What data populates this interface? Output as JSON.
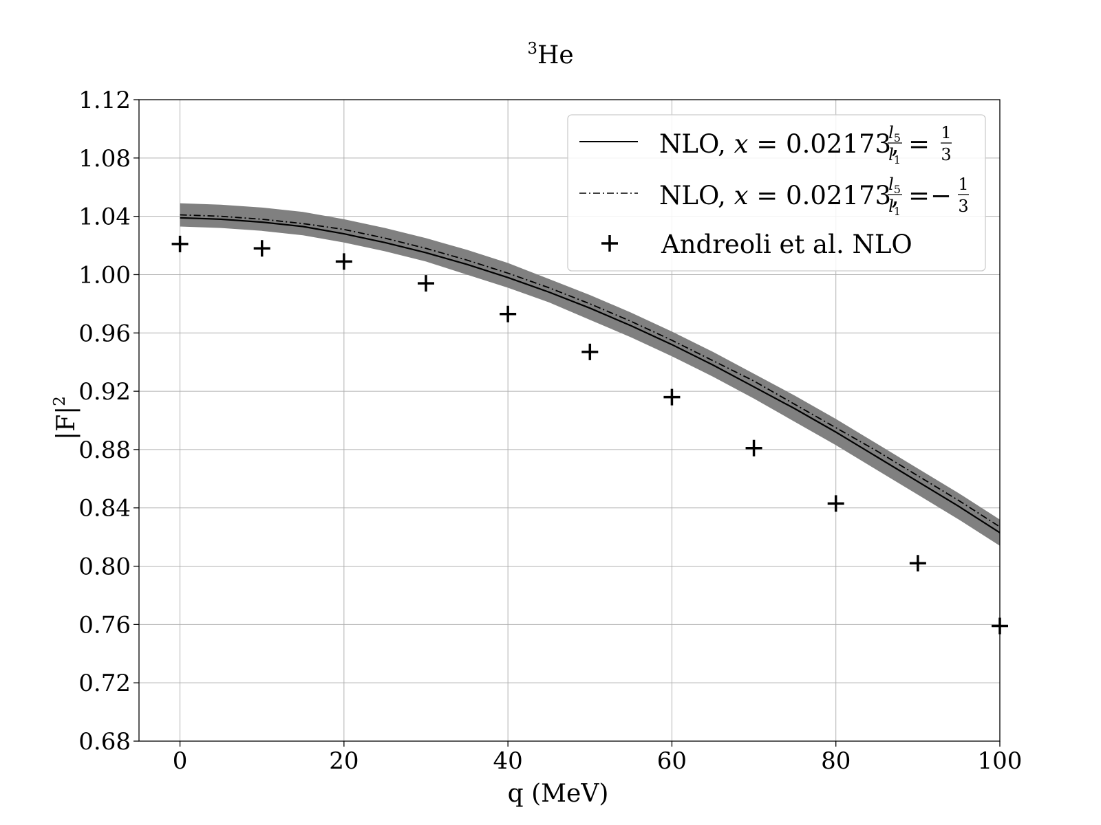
{
  "chart_data": {
    "type": "line",
    "title": {
      "superscript": "3",
      "text": "He"
    },
    "xlabel": "q (MeV)",
    "ylabel": {
      "text": "|F|",
      "superscript": "2"
    },
    "xlim": [
      -5,
      100
    ],
    "ylim": [
      0.68,
      1.12
    ],
    "xticks": [
      0,
      20,
      40,
      60,
      80,
      100
    ],
    "xtick_labels": [
      "0",
      "20",
      "40",
      "60",
      "80",
      "100"
    ],
    "yticks": [
      0.68,
      0.72,
      0.76,
      0.8,
      0.84,
      0.88,
      0.92,
      0.96,
      1.0,
      1.04,
      1.08,
      1.12
    ],
    "ytick_labels": [
      "0.68",
      "0.72",
      "0.76",
      "0.80",
      "0.84",
      "0.88",
      "0.92",
      "0.96",
      "1.00",
      "1.04",
      "1.08",
      "1.12"
    ],
    "grid": true,
    "legend_position": "top-right",
    "x": [
      0,
      5,
      10,
      15,
      20,
      25,
      30,
      35,
      40,
      45,
      50,
      55,
      60,
      65,
      70,
      75,
      80,
      85,
      90,
      95,
      100
    ],
    "band": {
      "color": "#808080",
      "lower": [
        1.033,
        1.032,
        1.03,
        1.027,
        1.022,
        1.016,
        1.009,
        1.0,
        0.991,
        0.981,
        0.969,
        0.957,
        0.944,
        0.93,
        0.915,
        0.899,
        0.883,
        0.866,
        0.849,
        0.832,
        0.814
      ],
      "upper": [
        1.049,
        1.048,
        1.046,
        1.043,
        1.038,
        1.032,
        1.025,
        1.017,
        1.008,
        0.997,
        0.986,
        0.974,
        0.961,
        0.947,
        0.932,
        0.917,
        0.901,
        0.884,
        0.867,
        0.85,
        0.832
      ]
    },
    "series": [
      {
        "name": "NLO, x = 0.02173, l5/l1 = 1/3",
        "style": "solid",
        "color": "#000000",
        "values": [
          1.039,
          1.038,
          1.036,
          1.033,
          1.028,
          1.022,
          1.015,
          1.007,
          0.998,
          0.988,
          0.977,
          0.965,
          0.952,
          0.938,
          0.923,
          0.908,
          0.892,
          0.875,
          0.858,
          0.841,
          0.823
        ]
      },
      {
        "name": "NLO, x = 0.02173, l5/l1 = −1/3",
        "style": "dashdot",
        "color": "#000000",
        "values": [
          1.041,
          1.04,
          1.038,
          1.035,
          1.031,
          1.025,
          1.018,
          1.01,
          1.001,
          0.991,
          0.98,
          0.968,
          0.955,
          0.941,
          0.927,
          0.911,
          0.895,
          0.879,
          0.862,
          0.845,
          0.827
        ]
      },
      {
        "name": "Andreoli et al. NLO",
        "style": "marker-plus",
        "color": "#000000",
        "x": [
          0,
          10,
          20,
          30,
          40,
          50,
          60,
          70,
          80,
          90,
          100
        ],
        "values": [
          1.021,
          1.018,
          1.009,
          0.994,
          0.973,
          0.947,
          0.916,
          0.881,
          0.843,
          0.802,
          0.759
        ]
      }
    ],
    "legend": [
      {
        "prefix": "NLO, ",
        "var": "x",
        "eq": " = 0.02173, ",
        "num": "l",
        "num_sub": "5",
        "den": "l",
        "den_sub": "1",
        "rhs_sign": "",
        "rhs_num": "1",
        "rhs_den": "3"
      },
      {
        "prefix": "NLO, ",
        "var": "x",
        "eq": " = 0.02173, ",
        "num": "l",
        "num_sub": "5",
        "den": "l",
        "den_sub": "1",
        "rhs_sign": "−",
        "rhs_num": "1",
        "rhs_den": "3"
      },
      {
        "label": "Andreoli et al. NLO"
      }
    ]
  }
}
